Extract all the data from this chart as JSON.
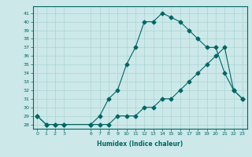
{
  "xlabel": "Humidex (Indice chaleur)",
  "bg_color": "#cce8e8",
  "line_color": "#006666",
  "grid_color": "#aad4d4",
  "x_ticks": [
    0,
    1,
    2,
    3,
    6,
    7,
    8,
    9,
    10,
    11,
    12,
    13,
    14,
    15,
    16,
    17,
    18,
    19,
    20,
    21,
    22,
    23
  ],
  "ylim": [
    27.5,
    41.8
  ],
  "xlim": [
    -0.5,
    23.5
  ],
  "curve1_x": [
    0,
    1,
    2,
    3,
    6,
    7,
    8,
    9,
    10,
    11,
    12,
    13,
    14,
    15,
    16,
    17,
    18,
    19,
    20,
    21,
    22,
    23
  ],
  "curve1_y": [
    29,
    28,
    28,
    28,
    28,
    29,
    31,
    32,
    35,
    37,
    40,
    40,
    41,
    40.5,
    40,
    39,
    38,
    37,
    37,
    34,
    32,
    31
  ],
  "curve2_x": [
    0,
    1,
    2,
    3,
    6,
    7,
    8,
    9,
    10,
    11,
    12,
    13,
    14,
    15,
    16,
    17,
    18,
    19,
    20,
    21,
    22,
    23
  ],
  "curve2_y": [
    29,
    28,
    28,
    28,
    28,
    28,
    28,
    29,
    29,
    29,
    30,
    30,
    31,
    31,
    32,
    33,
    34,
    35,
    36,
    37,
    32,
    31
  ],
  "marker": "D",
  "markersize": 2.5,
  "linewidth": 0.8
}
